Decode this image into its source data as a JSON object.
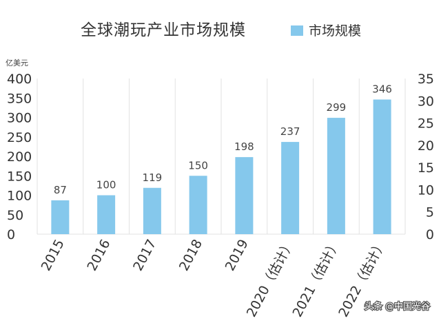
{
  "chart_data": {
    "type": "bar",
    "title": "全球潮玩产业市场规模",
    "legend": [
      "市场规模"
    ],
    "legend_placement": "top-right",
    "ylabel": "亿美元",
    "ylim": [
      0,
      400
    ],
    "yticks_left": [
      "0",
      "50",
      "100",
      "150",
      "200",
      "250",
      "300",
      "350",
      "400"
    ],
    "y2lim": [
      0,
      35
    ],
    "yticks_right": [
      "0",
      "5",
      "10",
      "15",
      "20",
      "25",
      "30",
      "35"
    ],
    "grid": "vertical",
    "categories": [
      "2015",
      "2016",
      "2017",
      "2018",
      "2019",
      "2020（估计）",
      "2021（估计）",
      "2022（估计）"
    ],
    "series": [
      {
        "name": "市场规模",
        "values": [
          87,
          100,
          119,
          150,
          198,
          237,
          299,
          346
        ],
        "labels": [
          "87",
          "100",
          "119",
          "150",
          "198",
          "237",
          "299",
          "346"
        ]
      }
    ],
    "colors": {
      "bar": "#85c8ec",
      "grid": "#e2e2e2",
      "text": "#333333"
    }
  },
  "watermark": "头条 @中国光谷"
}
